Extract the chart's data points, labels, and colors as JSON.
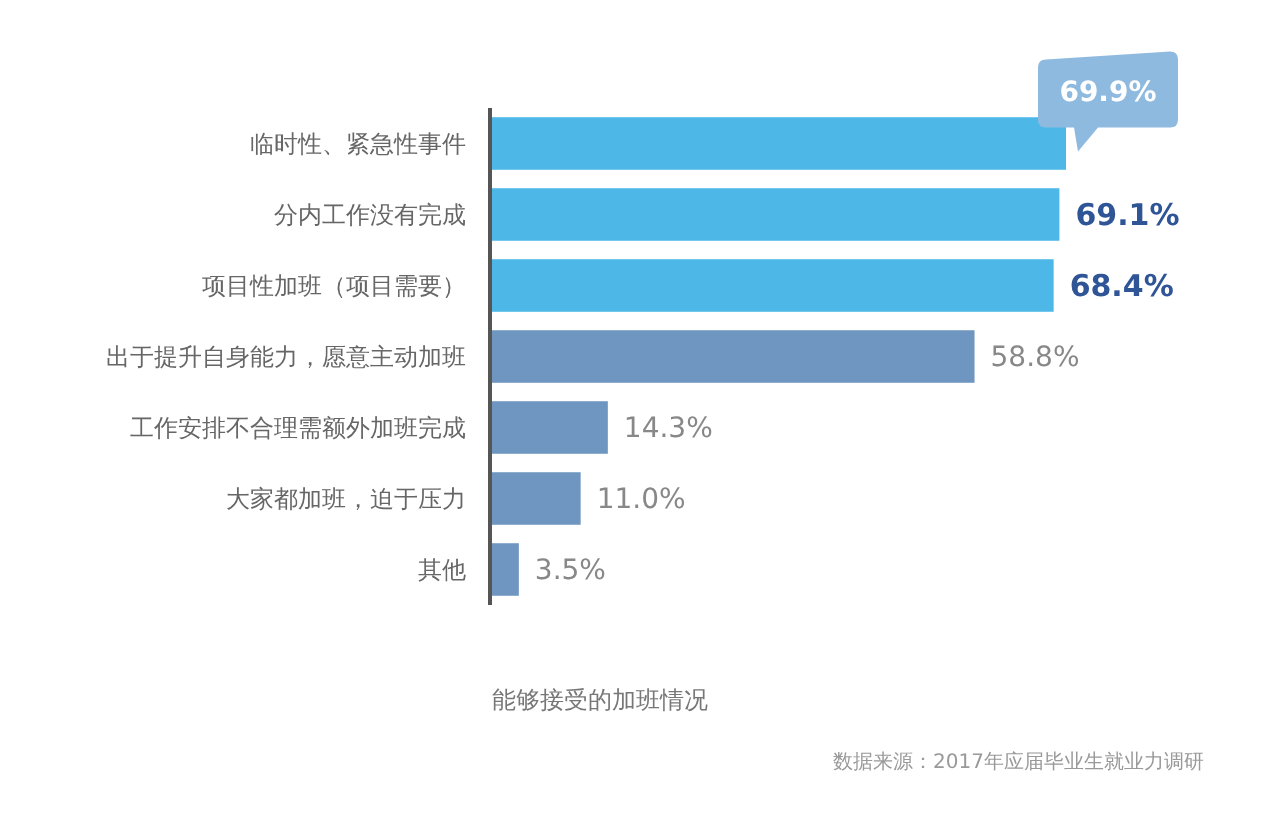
{
  "chart_data": {
    "type": "bar",
    "orientation": "horizontal",
    "title": "能够接受的加班情况",
    "categories": [
      "临时性、紧急性事件",
      "分内工作没有完成",
      "项目性加班（项目需要）",
      "出于提升自身能力，愿意主动加班",
      "工作安排不合理需额外加班完成",
      "大家都加班，迫于压力",
      "其他"
    ],
    "values": [
      69.9,
      69.1,
      68.4,
      58.8,
      14.3,
      11.0,
      3.5
    ],
    "value_labels": [
      "69.9%",
      "69.1%",
      "68.4%",
      "58.8%",
      "14.3%",
      "11.0%",
      "3.5%"
    ],
    "colors": [
      "#4db8e8",
      "#4db8e8",
      "#4db8e8",
      "#6f96c0",
      "#6f96c0",
      "#6f96c0",
      "#6f96c0"
    ],
    "annotations": [
      "数据来源：2017年应届毕业生就业力调研"
    ]
  }
}
